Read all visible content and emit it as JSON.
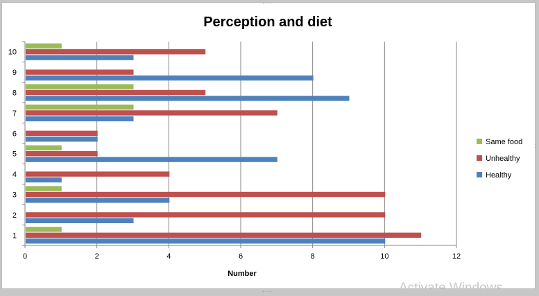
{
  "chart_data": {
    "type": "bar",
    "orientation": "horizontal",
    "title": "Perception and diet",
    "xlabel": "Number",
    "ylabel": "",
    "xlim": [
      0,
      12
    ],
    "x_ticks": [
      0,
      2,
      4,
      6,
      8,
      10,
      12
    ],
    "categories": [
      "1",
      "2",
      "3",
      "4",
      "5",
      "6",
      "7",
      "8",
      "9",
      "10"
    ],
    "series": [
      {
        "name": "Healthy",
        "color": "#4F81BD",
        "values": [
          10,
          3,
          4,
          1,
          7,
          2,
          3,
          9,
          8,
          3
        ]
      },
      {
        "name": "Unhealthy",
        "color": "#C0504D",
        "values": [
          11,
          10,
          10,
          4,
          2,
          2,
          7,
          5,
          3,
          5
        ]
      },
      {
        "name": "Same food",
        "color": "#9BBB59",
        "values": [
          1,
          0,
          1,
          0,
          1,
          0,
          3,
          3,
          0,
          1
        ]
      }
    ],
    "legend_position": "right",
    "legend_order": [
      "Same food",
      "Unhealthy",
      "Healthy"
    ],
    "grid": "vertical"
  },
  "overlay": {
    "watermark": "Activate Windows",
    "handle_glyph": "....",
    "handle_glyph_side": ":"
  }
}
